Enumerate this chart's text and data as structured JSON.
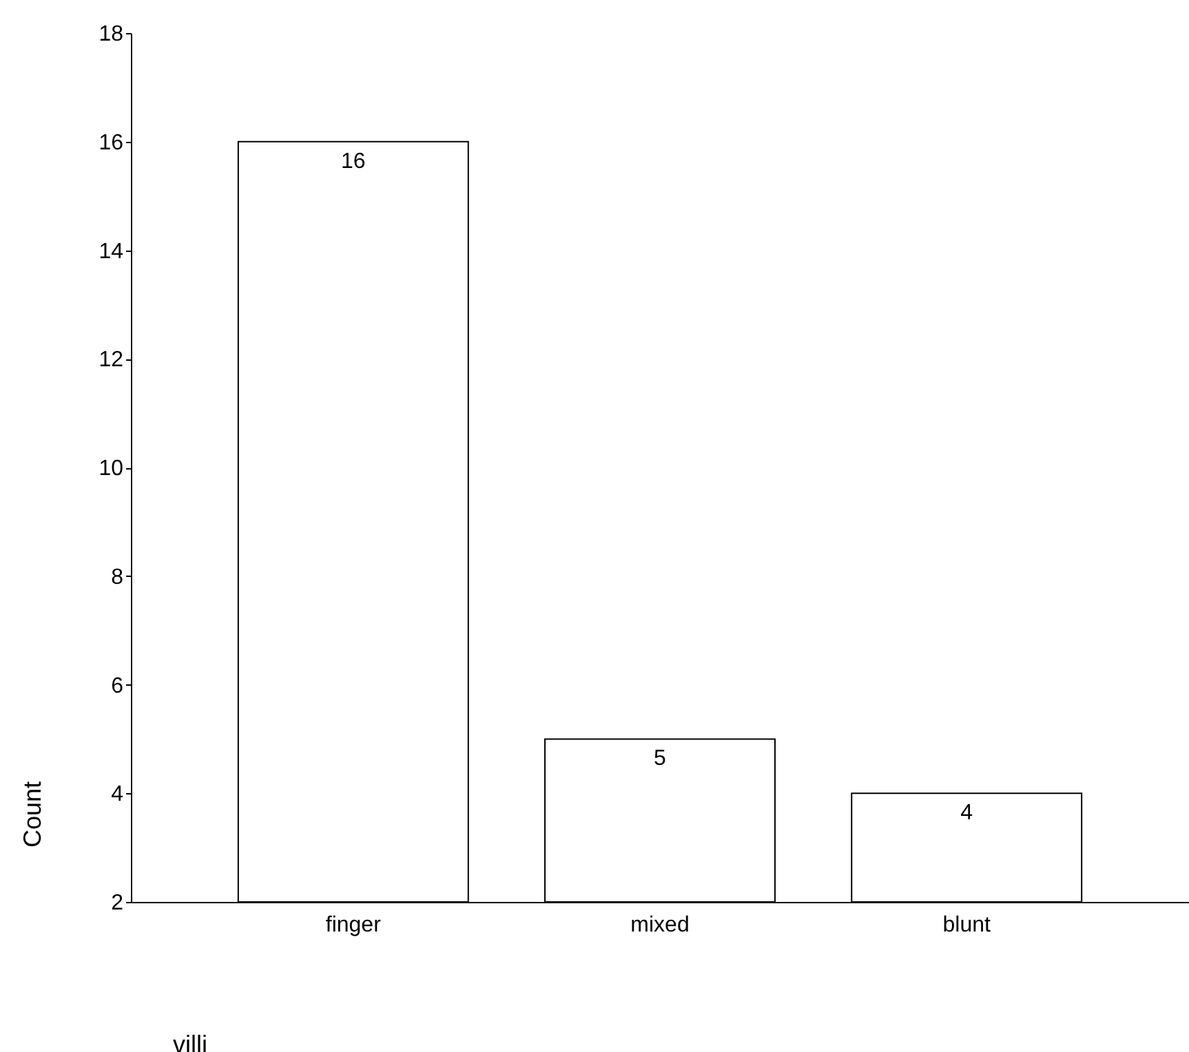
{
  "chart_data": {
    "type": "bar",
    "xlabel": "villi",
    "ylabel": "Count",
    "categories": [
      "finger",
      "mixed",
      "blunt"
    ],
    "values": [
      16,
      5,
      4
    ],
    "color": "#ffffff",
    "ylim": [
      2,
      18
    ],
    "yticks": [
      2,
      4,
      6,
      8,
      10,
      12,
      14,
      16,
      18
    ],
    "grid": false,
    "data_labels": true
  }
}
